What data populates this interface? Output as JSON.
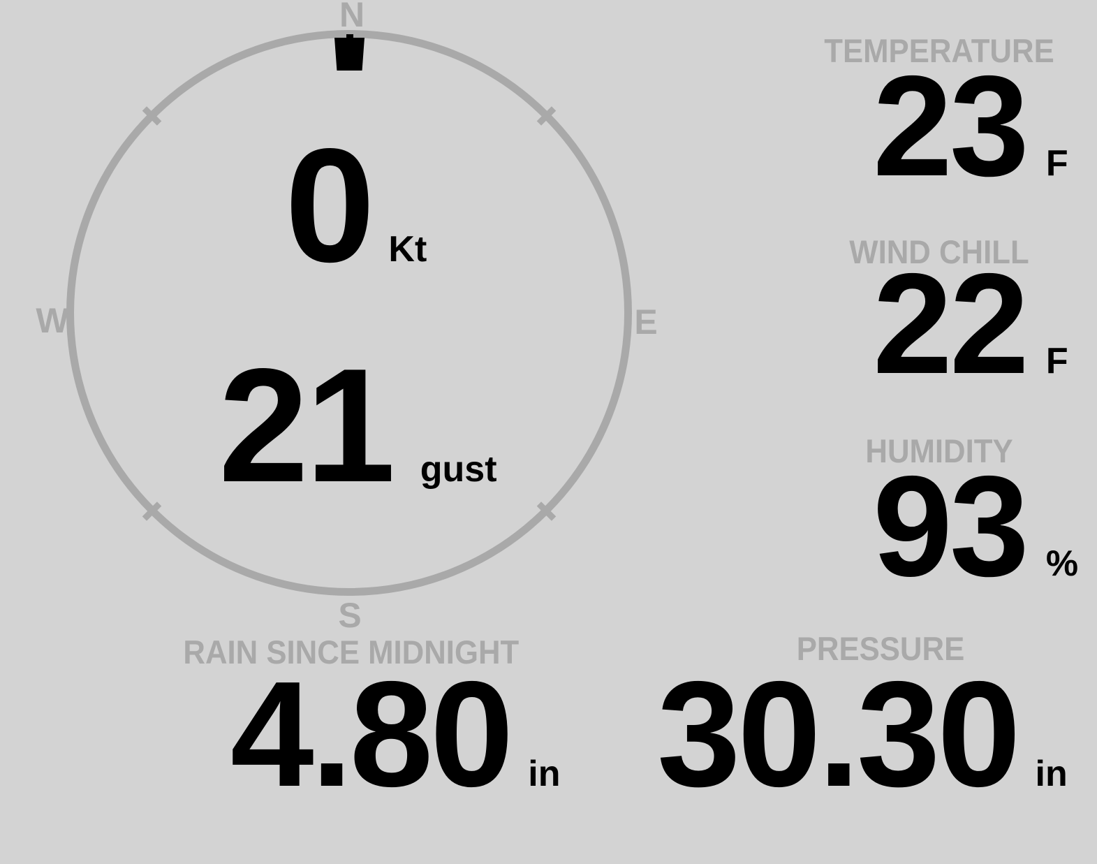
{
  "colors": {
    "background": "#d3d3d3",
    "muted": "#a9a9a9",
    "value": "#000000"
  },
  "wind_compass": {
    "north_label": "N",
    "east_label": "E",
    "south_label": "S",
    "west_label": "W",
    "direction_pointed": "N",
    "speed_value": "0",
    "speed_unit": "Kt",
    "gust_value": "21",
    "gust_unit": "gust"
  },
  "panels": {
    "temperature": {
      "label": "TEMPERATURE",
      "value": "23",
      "unit": "F"
    },
    "wind_chill": {
      "label": "WIND CHILL",
      "value": "22",
      "unit": "F"
    },
    "humidity": {
      "label": "HUMIDITY",
      "value": "93",
      "unit": "%"
    },
    "rain_since_midnight": {
      "label": "RAIN SINCE MIDNIGHT",
      "value": "4.80",
      "unit": "in"
    },
    "pressure": {
      "label": "PRESSURE",
      "value": "30.30",
      "unit": "in"
    }
  }
}
